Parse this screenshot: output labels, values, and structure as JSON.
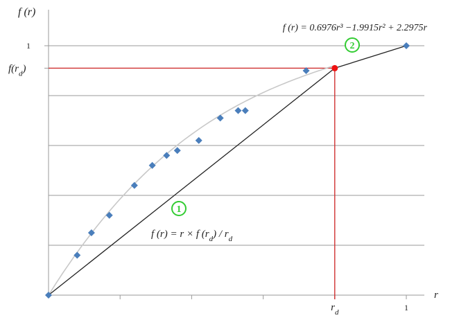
{
  "chart_data": {
    "type": "scatter",
    "ylabel": "f (r)",
    "xlabel": "r",
    "xlim": [
      0,
      1
    ],
    "ylim": [
      0,
      1
    ],
    "grid": "horizontal",
    "x_ticks": [
      {
        "value": 0.8,
        "label": "r_d"
      },
      {
        "value": 1.0,
        "label": "1"
      }
    ],
    "y_ticks": [
      {
        "value": 0.91,
        "label": "f(r_d)"
      },
      {
        "value": 1.0,
        "label": "1"
      }
    ],
    "minor_x_ticks": [
      0.2,
      0.4,
      0.6
    ],
    "y_gridlines": [
      0.2,
      0.4,
      0.6,
      0.8,
      0.91,
      1.0
    ],
    "series": [
      {
        "values": [
          {
            "x": 0.08,
            "y": 0.16
          },
          {
            "x": 0.12,
            "y": 0.25
          },
          {
            "x": 0.17,
            "y": 0.32
          },
          {
            "x": 0.24,
            "y": 0.44
          },
          {
            "x": 0.29,
            "y": 0.52
          },
          {
            "x": 0.33,
            "y": 0.56
          },
          {
            "x": 0.36,
            "y": 0.58
          },
          {
            "x": 0.42,
            "y": 0.62
          },
          {
            "x": 0.48,
            "y": 0.71
          },
          {
            "x": 0.53,
            "y": 0.74
          },
          {
            "x": 0.55,
            "y": 0.74
          },
          {
            "x": 0.72,
            "y": 0.9
          },
          {
            "x": 0.0,
            "y": 0.0
          },
          {
            "x": 1.0,
            "y": 1.0
          }
        ],
        "color": "#4a7ebb",
        "marker": "diamond"
      }
    ],
    "curve": {
      "label": "f (r) = 0.6976r³ −1.9915r² + 2.2975r",
      "coefficients": {
        "a3": 0.6976,
        "a2": -1.9915,
        "a1": 2.2975
      },
      "domain": [
        0,
        0.8
      ],
      "color": "#c8c8c8"
    },
    "lines": [
      {
        "x": [
          0,
          0.8
        ],
        "y": [
          0,
          0.91
        ],
        "color": "#222222",
        "label": "f (r) = r × f (r_d) / r_d",
        "marker_number": "1"
      },
      {
        "x": [
          0.8,
          1.0
        ],
        "y": [
          0.91,
          1.0
        ],
        "color": "#222222",
        "marker_number": "2"
      }
    ],
    "highlight_point": {
      "x": 0.8,
      "y": 0.91,
      "color": "#ee1111"
    },
    "reference_lines": {
      "color": "#cc2222",
      "x": 0.8,
      "y": 0.91
    },
    "marker_badge_color": "#33cc33"
  }
}
